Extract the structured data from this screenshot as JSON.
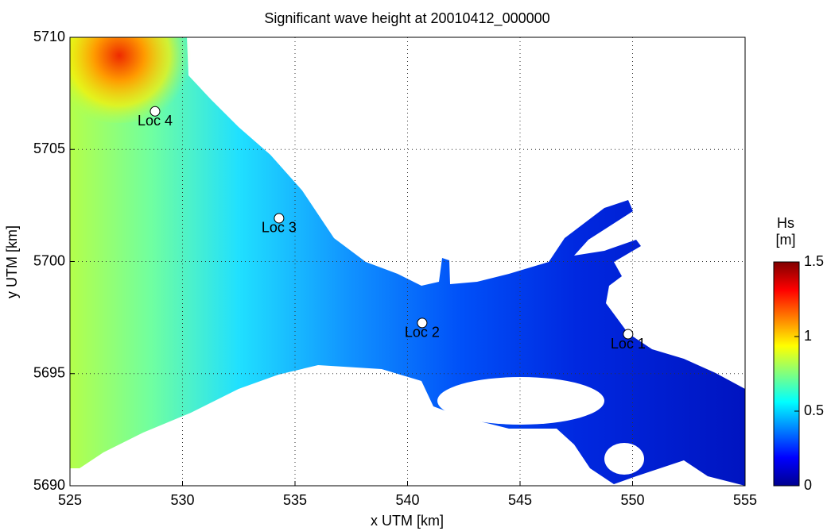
{
  "chart_data": {
    "type": "map",
    "title": "Significant wave height at 20010412_000000",
    "xlabel": "x UTM [km]",
    "ylabel": "y UTM [km]",
    "xlim": [
      525,
      555
    ],
    "ylim": [
      5690,
      5710
    ],
    "xticks": [
      525,
      530,
      535,
      540,
      545,
      550,
      555
    ],
    "yticks": [
      5690,
      5695,
      5700,
      5705,
      5710
    ],
    "grid": true,
    "points": [
      {
        "label": "Loc 1",
        "x": 549.8,
        "y": 5696.76
      },
      {
        "label": "Loc 2",
        "x": 540.65,
        "y": 5697.26
      },
      {
        "label": "Loc 3",
        "x": 534.29,
        "y": 5701.93
      },
      {
        "label": "Loc 4",
        "x": 528.78,
        "y": 5706.7
      }
    ],
    "colorbar": {
      "label": [
        "Hs",
        "[m]"
      ],
      "lim": [
        0,
        1.5
      ],
      "ticks": [
        0,
        0.5,
        1,
        1.5
      ],
      "colormap": "jet"
    }
  }
}
